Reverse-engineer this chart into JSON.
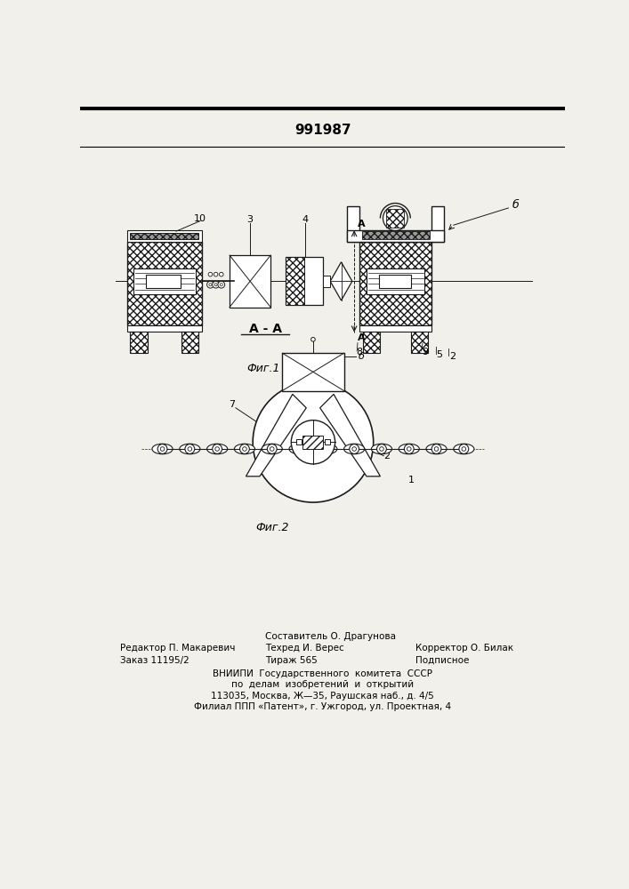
{
  "patent_number": "991987",
  "fig1_label": "Фиг.1",
  "fig2_label": "Фиг.2",
  "section_label": "А - А",
  "editor_line1": "Редактор П. Макаревич",
  "editor_line2": "Заказ 11195/2",
  "techred_line1": "Составитель О. Драгунова",
  "techred_line1b": "Техред И. Верес",
  "techred_line2": "Тираж 565",
  "corrector_line1": "Корректор О. Билак",
  "corrector_line2": "Подписное",
  "vnipi_line1": "ВНИИПИ  Государственного  комитета  СССР",
  "vnipi_line2": "по  делам  изобретений  и  открытий",
  "vnipi_line3": "113035, Москва, Ж—35, Раушская наб., д. 4/5",
  "vnipi_line4": "Филиал ППП «Патент», г. Ужгород, ул. Проектная, 4",
  "bg_color": "#f2f0eb",
  "line_color": "#1a1a1a"
}
